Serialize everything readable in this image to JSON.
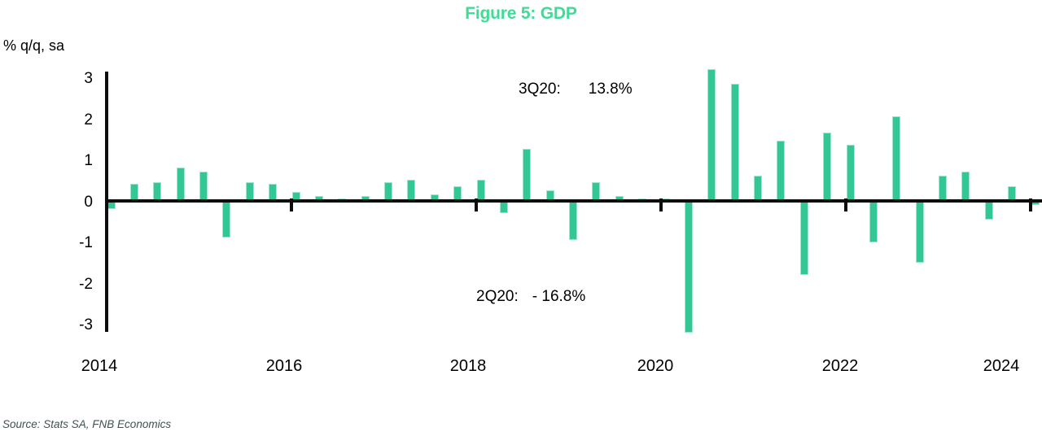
{
  "title": "Figure 5: GDP",
  "axis_unit_label": "% q/q, sa",
  "source": "Source: Stats SA, FNB Economics",
  "annotations": [
    {
      "label": "3Q20:",
      "value": "13.8%"
    },
    {
      "label": "2Q20:",
      "value": "- 16.8%"
    }
  ],
  "colors": {
    "title_green": "#3edc96",
    "bar_fill": "#32c794",
    "bar_edge": "#9fe5c9",
    "axis_black": "#0d0d0d",
    "source_gray": "#3e5154"
  },
  "chart_data": {
    "type": "bar",
    "title": "Figure 5: GDP",
    "xlabel": "",
    "ylabel": "% q/q, sa",
    "ylim": [
      -3,
      3
    ],
    "yticks": [
      3,
      2,
      1,
      0,
      -1,
      -2,
      -3
    ],
    "xticks": [
      "2014",
      "2016",
      "2018",
      "2020",
      "2022",
      "2024"
    ],
    "grid": false,
    "legend": false,
    "clip_note": "2Q20 (-16.8%) and 3Q20 (+13.8%) bars are clipped at the axis limits and labelled with text annotations",
    "x": [
      "2014Q1",
      "2014Q2",
      "2014Q3",
      "2014Q4",
      "2015Q1",
      "2015Q2",
      "2015Q3",
      "2015Q4",
      "2016Q1",
      "2016Q2",
      "2016Q3",
      "2016Q4",
      "2017Q1",
      "2017Q2",
      "2017Q3",
      "2017Q4",
      "2018Q1",
      "2018Q2",
      "2018Q3",
      "2018Q4",
      "2019Q1",
      "2019Q2",
      "2019Q3",
      "2019Q4",
      "2020Q1",
      "2020Q2",
      "2020Q3",
      "2020Q4",
      "2021Q1",
      "2021Q2",
      "2021Q3",
      "2021Q4",
      "2022Q1",
      "2022Q2",
      "2022Q3",
      "2022Q4",
      "2023Q1",
      "2023Q2",
      "2023Q3",
      "2023Q4",
      "2024Q1"
    ],
    "values": [
      -0.2,
      0.4,
      0.45,
      0.8,
      0.7,
      -0.9,
      0.45,
      0.4,
      0.2,
      0.1,
      0.05,
      0.1,
      0.45,
      0.5,
      0.15,
      0.35,
      0.5,
      -0.3,
      1.25,
      0.25,
      -0.95,
      0.45,
      0.1,
      0.05,
      0.05,
      -16.8,
      13.8,
      2.85,
      0.6,
      1.45,
      -1.8,
      1.65,
      1.35,
      -1.0,
      2.05,
      -1.5,
      0.6,
      0.7,
      -0.45,
      0.35,
      -0.1
    ]
  }
}
